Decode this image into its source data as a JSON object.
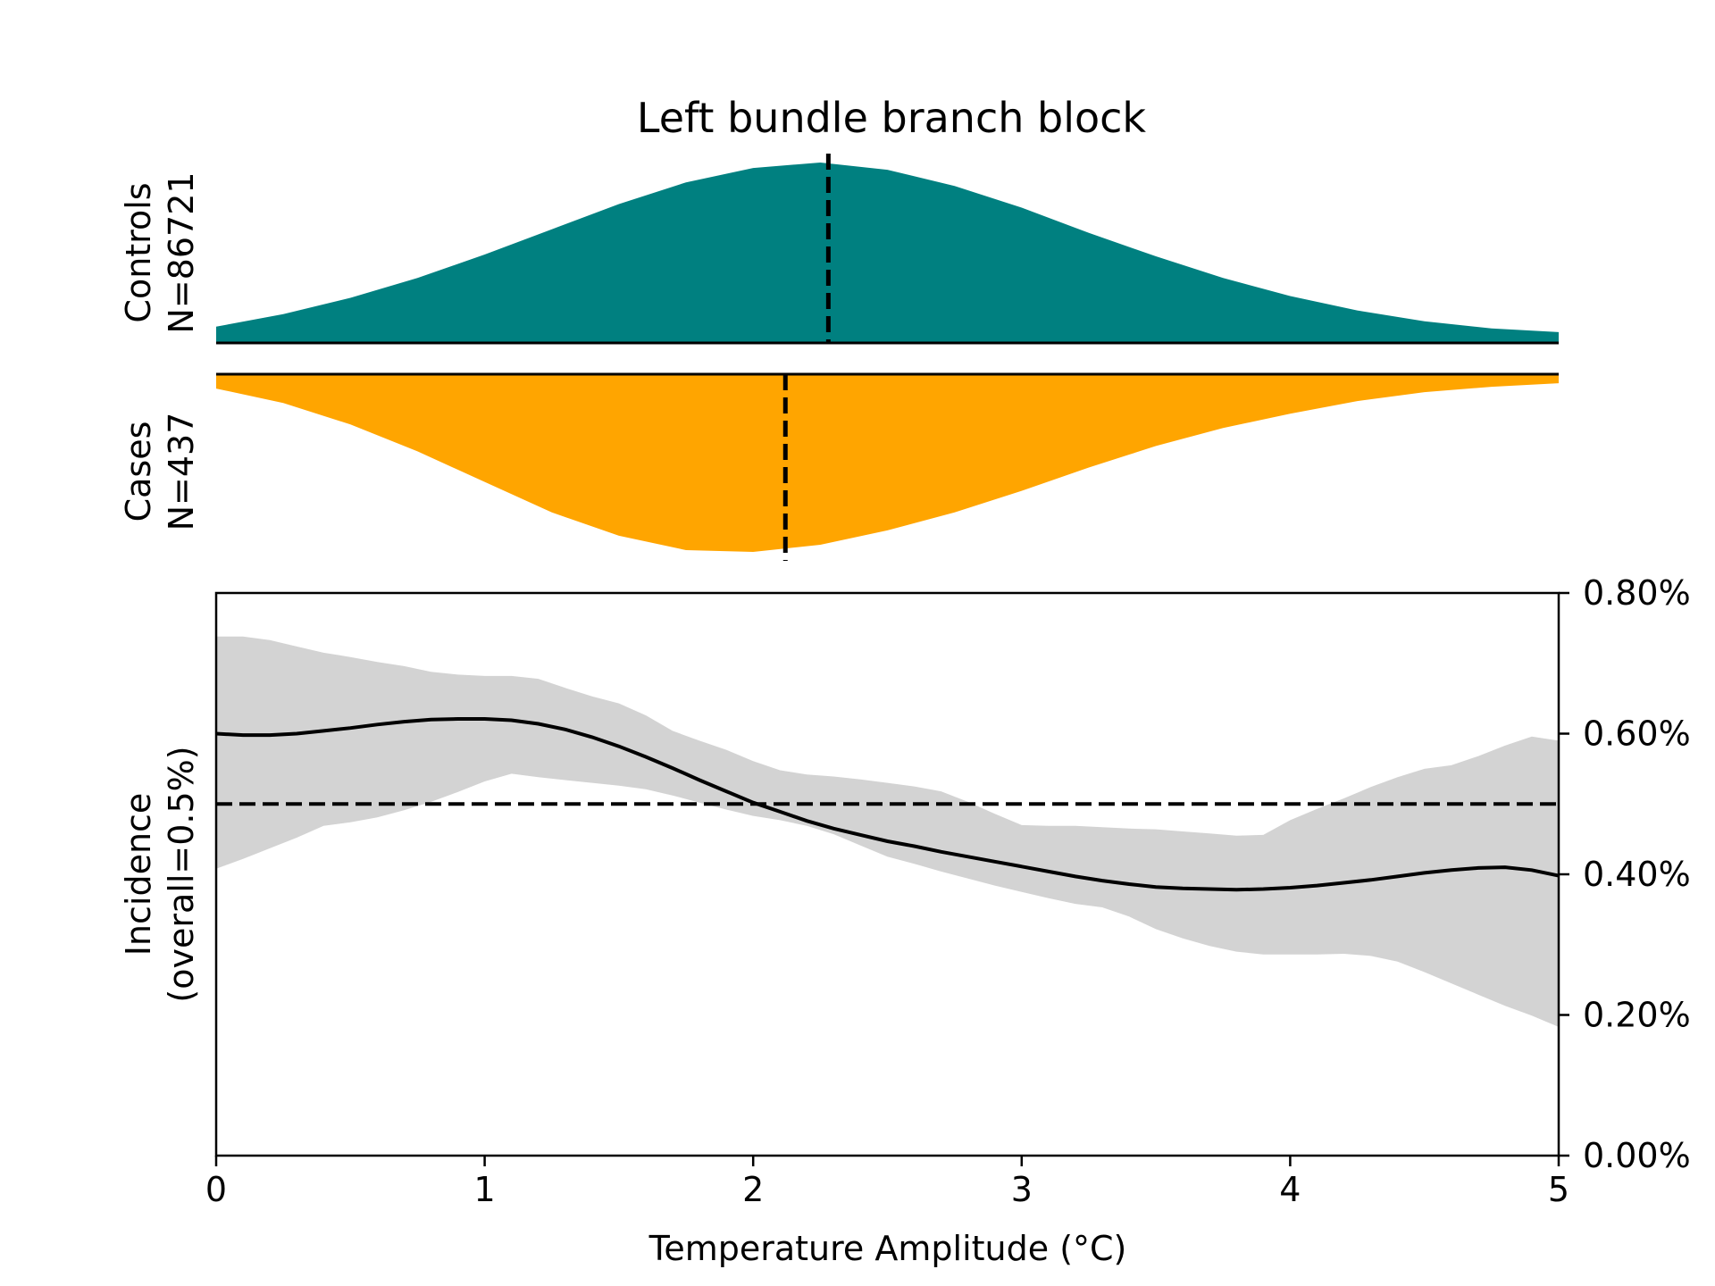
{
  "chart_data": {
    "type": "area",
    "title": "Left bundle branch block",
    "colors": {
      "controls": "#008080",
      "cases": "#FFA500",
      "band": "#d3d3d3",
      "line": "#000000"
    },
    "controls": {
      "label_line1": "Controls",
      "label_line2": "N=86721",
      "median": 2.28,
      "density": {
        "x": [
          0,
          0.25,
          0.5,
          0.75,
          1.0,
          1.25,
          1.5,
          1.75,
          2.0,
          2.25,
          2.5,
          2.75,
          3.0,
          3.25,
          3.5,
          3.75,
          4.0,
          4.25,
          4.5,
          4.75,
          5.0
        ],
        "y": [
          0.09,
          0.16,
          0.25,
          0.36,
          0.49,
          0.63,
          0.77,
          0.89,
          0.97,
          1.0,
          0.96,
          0.87,
          0.75,
          0.61,
          0.48,
          0.36,
          0.26,
          0.18,
          0.12,
          0.08,
          0.06
        ]
      }
    },
    "cases": {
      "label_line1": "Cases",
      "label_line2": "N=437",
      "median": 2.12,
      "density": {
        "x": [
          0,
          0.25,
          0.5,
          0.75,
          1.0,
          1.25,
          1.5,
          1.75,
          2.0,
          2.25,
          2.5,
          2.75,
          3.0,
          3.25,
          3.5,
          3.75,
          4.0,
          4.25,
          4.5,
          4.75,
          5.0
        ],
        "y": [
          0.08,
          0.16,
          0.28,
          0.43,
          0.6,
          0.77,
          0.9,
          0.98,
          0.99,
          0.95,
          0.87,
          0.77,
          0.65,
          0.52,
          0.4,
          0.3,
          0.22,
          0.15,
          0.1,
          0.07,
          0.05
        ]
      }
    },
    "incidence": {
      "ylabel_line1": "Incidence",
      "ylabel_line2": "(overall=0.5%)",
      "xlabel": "Temperature Amplitude (°C)",
      "xlim": [
        0,
        5
      ],
      "ylim": [
        0,
        0.8
      ],
      "xticks": [
        "0",
        "1",
        "2",
        "3",
        "4",
        "5"
      ],
      "yticks": [
        "0.00%",
        "0.20%",
        "0.40%",
        "0.60%",
        "0.80%"
      ],
      "overall": 0.5,
      "series": [
        {
          "x": [
            0,
            0.1,
            0.2,
            0.3,
            0.4,
            0.5,
            0.6,
            0.7,
            0.8,
            0.9,
            1.0,
            1.1,
            1.2,
            1.3,
            1.4,
            1.5,
            1.6,
            1.7,
            1.8,
            1.9,
            2.0,
            2.1,
            2.2,
            2.3,
            2.4,
            2.5,
            2.6,
            2.7,
            2.8,
            2.9,
            3.0,
            3.1,
            3.2,
            3.3,
            3.4,
            3.5,
            3.6,
            3.7,
            3.8,
            3.9,
            4.0,
            4.1,
            4.2,
            4.3,
            4.4,
            4.5,
            4.6,
            4.7,
            4.8,
            4.9,
            5.0
          ],
          "y": [
            0.6,
            0.598,
            0.598,
            0.6,
            0.604,
            0.608,
            0.613,
            0.617,
            0.62,
            0.621,
            0.621,
            0.619,
            0.614,
            0.606,
            0.595,
            0.582,
            0.567,
            0.551,
            0.534,
            0.518,
            0.502,
            0.489,
            0.476,
            0.465,
            0.456,
            0.447,
            0.44,
            0.432,
            0.425,
            0.418,
            0.411,
            0.404,
            0.397,
            0.391,
            0.386,
            0.382,
            0.38,
            0.379,
            0.378,
            0.379,
            0.381,
            0.384,
            0.388,
            0.392,
            0.397,
            0.402,
            0.406,
            0.409,
            0.41,
            0.406,
            0.398
          ],
          "lower": [
            0.408,
            0.422,
            0.437,
            0.452,
            0.469,
            0.474,
            0.481,
            0.491,
            0.503,
            0.517,
            0.532,
            0.543,
            0.538,
            0.534,
            0.53,
            0.526,
            0.521,
            0.512,
            0.502,
            0.492,
            0.483,
            0.477,
            0.469,
            0.457,
            0.441,
            0.425,
            0.415,
            0.404,
            0.394,
            0.384,
            0.375,
            0.366,
            0.358,
            0.353,
            0.34,
            0.322,
            0.309,
            0.298,
            0.29,
            0.286,
            0.286,
            0.286,
            0.287,
            0.284,
            0.276,
            0.261,
            0.245,
            0.229,
            0.213,
            0.199,
            0.183
          ],
          "upper": [
            0.738,
            0.738,
            0.733,
            0.724,
            0.715,
            0.709,
            0.702,
            0.696,
            0.688,
            0.684,
            0.682,
            0.682,
            0.678,
            0.665,
            0.653,
            0.643,
            0.626,
            0.604,
            0.59,
            0.577,
            0.561,
            0.548,
            0.542,
            0.539,
            0.535,
            0.53,
            0.525,
            0.518,
            0.503,
            0.486,
            0.47,
            0.469,
            0.469,
            0.467,
            0.465,
            0.464,
            0.461,
            0.458,
            0.455,
            0.456,
            0.477,
            0.493,
            0.508,
            0.524,
            0.538,
            0.55,
            0.555,
            0.568,
            0.583,
            0.596,
            0.59
          ]
        }
      ]
    }
  }
}
